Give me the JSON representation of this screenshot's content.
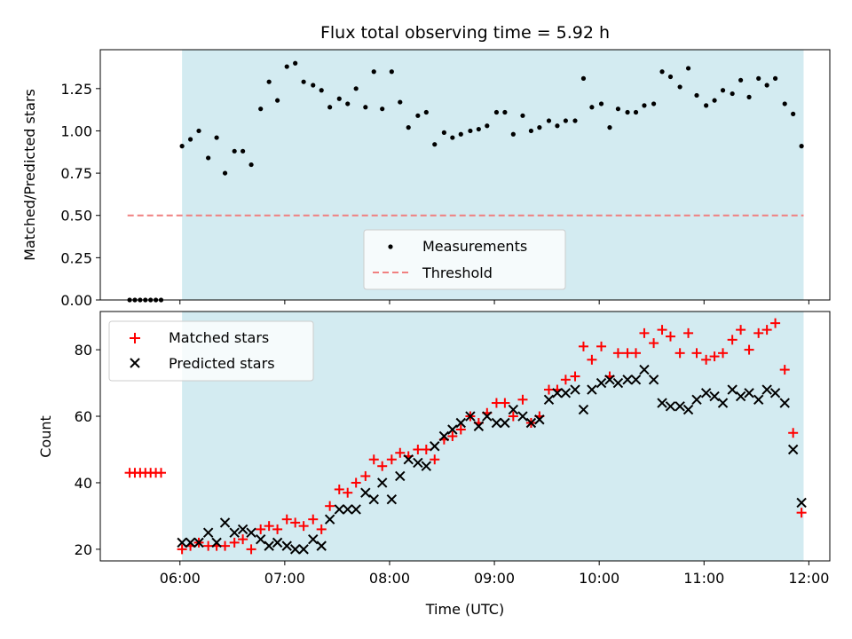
{
  "chart_data": [
    {
      "type": "scatter",
      "title": "Flux total observing time = 5.92 h",
      "xlabel": "",
      "ylabel": "Matched/Predicted stars",
      "ylim": [
        0.0,
        1.48
      ],
      "yticks": [
        "0.00",
        "0.25",
        "0.50",
        "0.75",
        "1.00",
        "1.25"
      ],
      "legend": {
        "placement": "lower-center",
        "entries": [
          "Measurements",
          "Threshold"
        ]
      },
      "shaded_span": {
        "start": 6.02,
        "end": 11.95,
        "color": "#d3ebf1"
      },
      "threshold": {
        "name": "Threshold",
        "value": 0.5,
        "x_start": 5.5,
        "x_end": 11.95,
        "color": "#f08080"
      },
      "series": [
        {
          "name": "Measurements",
          "color": "#000000",
          "x": [
            5.52,
            5.57,
            5.62,
            5.67,
            5.72,
            5.77,
            5.82,
            6.02,
            6.1,
            6.18,
            6.27,
            6.35,
            6.43,
            6.52,
            6.6,
            6.68,
            6.77,
            6.85,
            6.93,
            7.02,
            7.1,
            7.18,
            7.27,
            7.35,
            7.43,
            7.52,
            7.6,
            7.68,
            7.77,
            7.85,
            7.93,
            8.02,
            8.1,
            8.18,
            8.27,
            8.35,
            8.43,
            8.52,
            8.6,
            8.68,
            8.77,
            8.85,
            8.93,
            9.02,
            9.1,
            9.18,
            9.27,
            9.35,
            9.43,
            9.52,
            9.6,
            9.68,
            9.77,
            9.85,
            9.93,
            10.02,
            10.1,
            10.18,
            10.27,
            10.35,
            10.43,
            10.52,
            10.6,
            10.68,
            10.77,
            10.85,
            10.93,
            11.02,
            11.1,
            11.18,
            11.27,
            11.35,
            11.43,
            11.52,
            11.6,
            11.68,
            11.77,
            11.85,
            11.93
          ],
          "y": [
            0,
            0,
            0,
            0,
            0,
            0,
            0,
            0.91,
            0.95,
            1.0,
            0.84,
            0.96,
            0.75,
            0.88,
            0.88,
            0.8,
            1.13,
            1.29,
            1.18,
            1.38,
            1.4,
            1.29,
            1.27,
            1.24,
            1.14,
            1.19,
            1.16,
            1.25,
            1.14,
            1.35,
            1.13,
            1.35,
            1.17,
            1.02,
            1.09,
            1.11,
            0.92,
            0.99,
            0.96,
            0.98,
            1.0,
            1.01,
            1.03,
            1.11,
            1.11,
            0.98,
            1.09,
            1.0,
            1.02,
            1.06,
            1.03,
            1.06,
            1.06,
            1.31,
            1.14,
            1.16,
            1.02,
            1.13,
            1.11,
            1.11,
            1.15,
            1.16,
            1.35,
            1.32,
            1.26,
            1.37,
            1.21,
            1.15,
            1.18,
            1.24,
            1.22,
            1.3,
            1.2,
            1.31,
            1.27,
            1.31,
            1.16,
            1.1,
            0.91
          ]
        }
      ]
    },
    {
      "type": "scatter",
      "title": "",
      "xlabel": "Time (UTC)",
      "ylabel": "Count",
      "xlim": [
        5.24,
        12.2
      ],
      "ylim": [
        16.5,
        91.5
      ],
      "xticks": [
        "06:00",
        "07:00",
        "08:00",
        "09:00",
        "10:00",
        "11:00",
        "12:00"
      ],
      "yticks": [
        "20",
        "40",
        "60",
        "80"
      ],
      "legend": {
        "placement": "upper-left",
        "entries": [
          "Matched stars",
          "Predicted stars"
        ]
      },
      "shaded_span": {
        "start": 6.02,
        "end": 11.95,
        "color": "#d3ebf1"
      },
      "series": [
        {
          "name": "Matched stars",
          "color": "#ff0000",
          "marker": "plus",
          "x": [
            5.52,
            5.57,
            5.62,
            5.67,
            5.72,
            5.77,
            5.82,
            6.02,
            6.1,
            6.18,
            6.27,
            6.35,
            6.43,
            6.52,
            6.6,
            6.68,
            6.77,
            6.85,
            6.93,
            7.02,
            7.1,
            7.18,
            7.27,
            7.35,
            7.43,
            7.52,
            7.6,
            7.68,
            7.77,
            7.85,
            7.93,
            8.02,
            8.1,
            8.18,
            8.27,
            8.35,
            8.43,
            8.52,
            8.6,
            8.68,
            8.77,
            8.85,
            8.93,
            9.02,
            9.1,
            9.18,
            9.27,
            9.35,
            9.43,
            9.52,
            9.6,
            9.68,
            9.77,
            9.85,
            9.93,
            10.02,
            10.1,
            10.18,
            10.27,
            10.35,
            10.43,
            10.52,
            10.6,
            10.68,
            10.77,
            10.85,
            10.93,
            11.02,
            11.1,
            11.18,
            11.27,
            11.35,
            11.43,
            11.52,
            11.6,
            11.68,
            11.77,
            11.85,
            11.93
          ],
          "y": [
            43,
            43,
            43,
            43,
            43,
            43,
            43,
            20,
            21,
            22,
            21,
            21,
            21,
            22,
            23,
            20,
            26,
            27,
            26,
            29,
            28,
            27,
            29,
            26,
            33,
            38,
            37,
            40,
            42,
            47,
            45,
            47,
            49,
            48,
            50,
            50,
            47,
            53,
            54,
            56,
            60,
            58,
            61,
            64,
            64,
            60,
            65,
            58,
            60,
            68,
            68,
            71,
            72,
            81,
            77,
            81,
            72,
            79,
            79,
            79,
            85,
            82,
            86,
            84,
            79,
            85,
            79,
            77,
            78,
            79,
            83,
            86,
            80,
            85,
            86,
            88,
            74,
            55,
            31
          ]
        },
        {
          "name": "Predicted stars",
          "color": "#000000",
          "marker": "x",
          "x": [
            6.02,
            6.1,
            6.18,
            6.27,
            6.35,
            6.43,
            6.52,
            6.6,
            6.68,
            6.77,
            6.85,
            6.93,
            7.02,
            7.1,
            7.18,
            7.27,
            7.35,
            7.43,
            7.52,
            7.6,
            7.68,
            7.77,
            7.85,
            7.93,
            8.02,
            8.1,
            8.18,
            8.27,
            8.35,
            8.43,
            8.52,
            8.6,
            8.68,
            8.77,
            8.85,
            8.93,
            9.02,
            9.1,
            9.18,
            9.27,
            9.35,
            9.43,
            9.52,
            9.6,
            9.68,
            9.77,
            9.85,
            9.93,
            10.02,
            10.1,
            10.18,
            10.27,
            10.35,
            10.43,
            10.52,
            10.6,
            10.68,
            10.77,
            10.85,
            10.93,
            11.02,
            11.1,
            11.18,
            11.27,
            11.35,
            11.43,
            11.52,
            11.6,
            11.68,
            11.77,
            11.85,
            11.93
          ],
          "y": [
            22,
            22,
            22,
            25,
            22,
            28,
            25,
            26,
            25,
            23,
            21,
            22,
            21,
            20,
            20,
            23,
            21,
            29,
            32,
            32,
            32,
            37,
            35,
            40,
            35,
            42,
            47,
            46,
            45,
            51,
            54,
            56,
            58,
            60,
            57,
            60,
            58,
            58,
            62,
            60,
            58,
            59,
            65,
            67,
            67,
            68,
            62,
            68,
            70,
            71,
            70,
            71,
            71,
            74,
            71,
            64,
            63,
            63,
            62,
            65,
            67,
            66,
            64,
            68,
            66,
            67,
            65,
            68,
            67,
            64,
            50,
            34
          ]
        }
      ]
    }
  ]
}
